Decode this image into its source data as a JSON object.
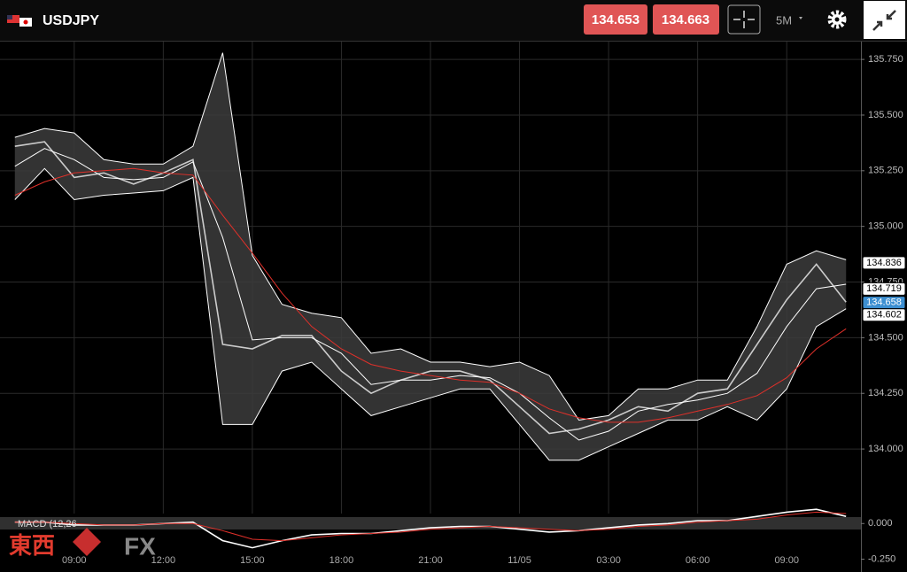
{
  "header": {
    "symbol": "USDJPY",
    "bid": "134.653",
    "ask": "134.663",
    "timeframe": "5M"
  },
  "watermark": {
    "left": "東西",
    "right": "FX"
  },
  "chart_data": [
    {
      "type": "line",
      "categories": [
        null,
        null,
        "09:00",
        null,
        null,
        "12:00",
        null,
        null,
        "15:00",
        null,
        null,
        "18:00",
        null,
        null,
        "21:00",
        null,
        null,
        "11/05",
        null,
        null,
        "03:00",
        null,
        null,
        "06:00",
        null,
        null,
        "09:00",
        null,
        null
      ],
      "series": [
        {
          "color": "#cccccc",
          "values": [
            135.36,
            135.38,
            135.22,
            135.24,
            135.19,
            135.24,
            135.3,
            134.47,
            134.45,
            134.51,
            134.51,
            134.35,
            134.25,
            134.31,
            134.35,
            134.35,
            134.31,
            134.19,
            134.07,
            134.09,
            134.13,
            134.19,
            134.17,
            134.25,
            134.27,
            134.47,
            134.67,
            134.83,
            134.66
          ]
        },
        {
          "color": "#ffffff",
          "values": [
            135.4,
            135.44,
            135.42,
            135.3,
            135.28,
            135.28,
            135.36,
            135.78,
            134.87,
            134.65,
            134.61,
            134.59,
            134.43,
            134.45,
            134.39,
            134.39,
            134.37,
            134.39,
            134.33,
            134.13,
            134.15,
            134.27,
            134.27,
            134.31,
            134.31,
            134.55,
            134.83,
            134.89,
            134.85
          ]
        },
        {
          "color": "#ffffff",
          "values": [
            135.27,
            135.35,
            135.3,
            135.22,
            135.21,
            135.22,
            135.29,
            134.95,
            134.49,
            134.5,
            134.5,
            134.43,
            134.29,
            134.31,
            134.31,
            134.33,
            134.32,
            134.25,
            134.14,
            134.04,
            134.08,
            134.17,
            134.2,
            134.22,
            134.25,
            134.34,
            134.55,
            134.72,
            134.74
          ]
        },
        {
          "color": "#ffffff",
          "values": [
            135.12,
            135.26,
            135.12,
            135.14,
            135.15,
            135.16,
            135.22,
            134.11,
            134.11,
            134.35,
            134.39,
            134.27,
            134.15,
            134.19,
            134.23,
            134.27,
            134.27,
            134.11,
            133.95,
            133.95,
            134.01,
            134.07,
            134.13,
            134.13,
            134.19,
            134.13,
            134.27,
            134.55,
            134.63
          ]
        },
        {
          "color": "#e0302a",
          "values": [
            135.14,
            135.2,
            135.24,
            135.25,
            135.26,
            135.24,
            135.23,
            135.05,
            134.88,
            134.7,
            134.55,
            134.45,
            134.38,
            134.35,
            134.33,
            134.31,
            134.3,
            134.25,
            134.18,
            134.14,
            134.12,
            134.12,
            134.14,
            134.17,
            134.2,
            134.24,
            134.32,
            134.45,
            134.54
          ]
        }
      ],
      "ylim": [
        133.71,
        135.83
      ],
      "yticks": [
        {
          "value": 134,
          "label": "134.000"
        },
        {
          "value": 134.25,
          "label": "134.250"
        },
        {
          "value": 134.5,
          "label": "134.500"
        },
        {
          "value": 134.75,
          "label": "134.750"
        },
        {
          "value": 135,
          "label": "135.000"
        },
        {
          "value": 135.25,
          "label": "135.250"
        },
        {
          "value": 135.5,
          "label": "135.500"
        },
        {
          "value": 135.75,
          "label": "135.750"
        }
      ],
      "price_tags": [
        {
          "value": 134.836,
          "color": "#ffffff"
        },
        {
          "value": 134.719,
          "color": "#ffffff"
        },
        {
          "value": 134.658,
          "color": "#3d8fd1"
        },
        {
          "value": 134.602,
          "color": "#ffffff"
        }
      ],
      "grid": true
    },
    {
      "type": "line",
      "title": "MACD (12,26",
      "series": [
        {
          "color": "#ffffff",
          "values": [
            0.01,
            0.01,
            -0.01,
            -0.01,
            -0.01,
            0,
            0.01,
            -0.12,
            -0.17,
            -0.12,
            -0.08,
            -0.07,
            -0.07,
            -0.05,
            -0.03,
            -0.02,
            -0.02,
            -0.04,
            -0.06,
            -0.05,
            -0.03,
            -0.01,
            0,
            0.02,
            0.02,
            0.05,
            0.08,
            0.1,
            0.05
          ]
        },
        {
          "color": "#e0302a",
          "values": [
            0.01,
            0.01,
            0,
            -0.01,
            -0.01,
            0,
            0,
            -0.05,
            -0.11,
            -0.12,
            -0.1,
            -0.08,
            -0.07,
            -0.06,
            -0.04,
            -0.03,
            -0.02,
            -0.03,
            -0.04,
            -0.05,
            -0.04,
            -0.02,
            -0.01,
            0.01,
            0.02,
            0.03,
            0.06,
            0.08,
            0.07
          ]
        }
      ],
      "ylim": [
        -0.34,
        0.07
      ],
      "yticks": [
        {
          "value": -0.25,
          "label": "-0.250"
        },
        {
          "value": 0,
          "label": "0.000"
        }
      ]
    }
  ]
}
